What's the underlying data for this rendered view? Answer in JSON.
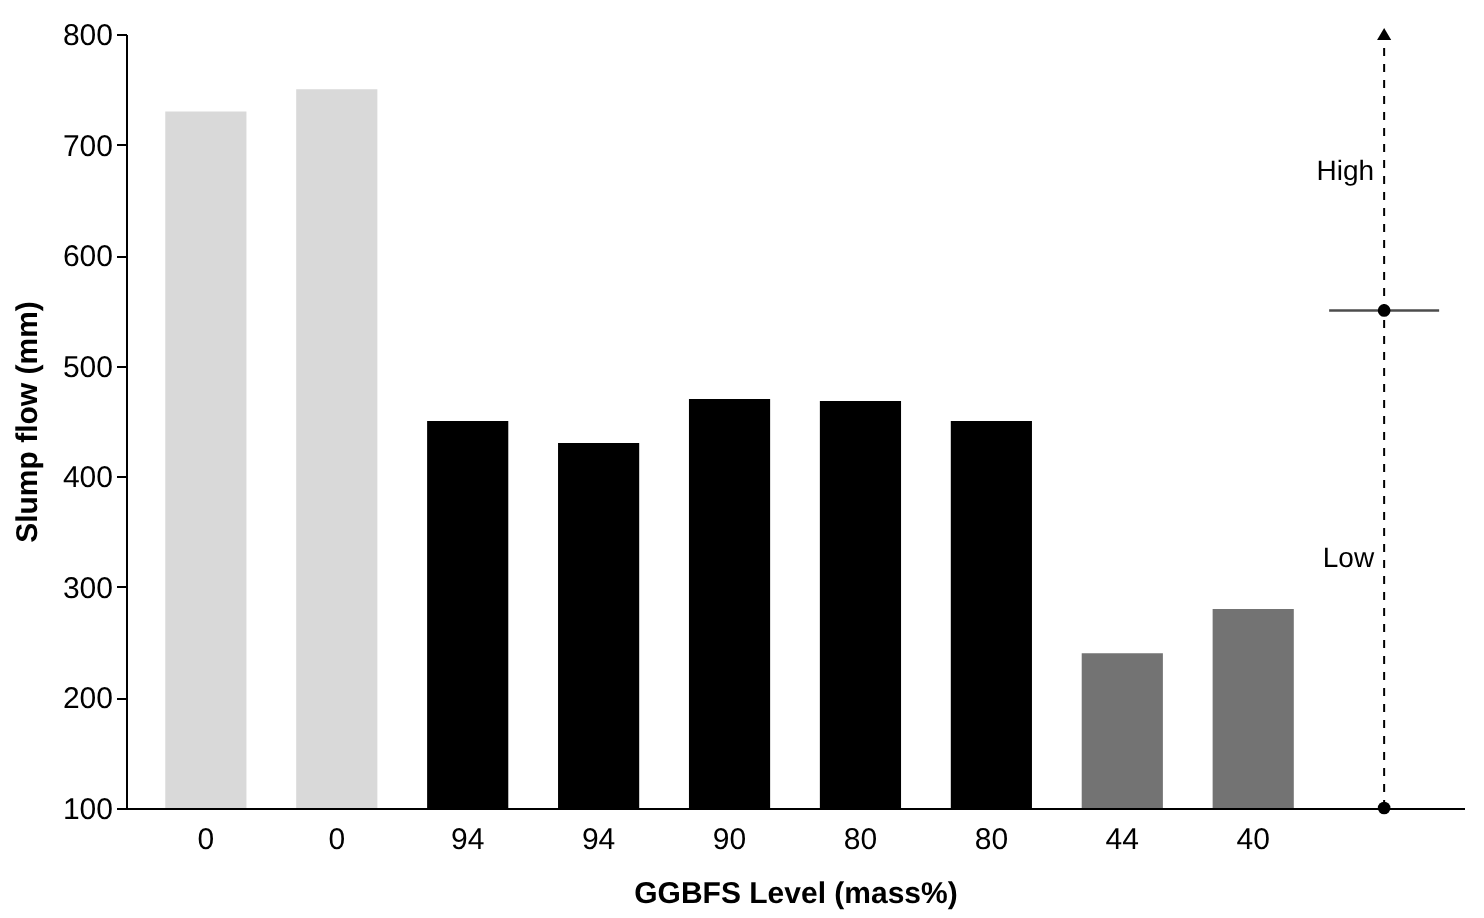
{
  "chart_data": {
    "type": "bar",
    "xlabel": "GGBFS Level (mass%)",
    "ylabel": "Slump flow (mm)",
    "categories": [
      "0",
      "0",
      "94",
      "94",
      "90",
      "80",
      "80",
      "44",
      "40",
      null
    ],
    "values": [
      730,
      750,
      450,
      430,
      470,
      468,
      450,
      240,
      280,
      null
    ],
    "colors": [
      "#d9d9d9",
      "#d9d9d9",
      "#000000",
      "#000000",
      "#000000",
      "#000000",
      "#000000",
      "#737373",
      "#737373",
      "#ffffff"
    ],
    "ylim": [
      100,
      800
    ],
    "yticks": [
      100,
      200,
      300,
      400,
      500,
      600,
      700,
      800
    ],
    "ref_lines": [
      {
        "axis": "y",
        "value": 550,
        "label": null,
        "color": "#000000"
      }
    ],
    "annotations": [
      "High",
      "Low"
    ]
  }
}
